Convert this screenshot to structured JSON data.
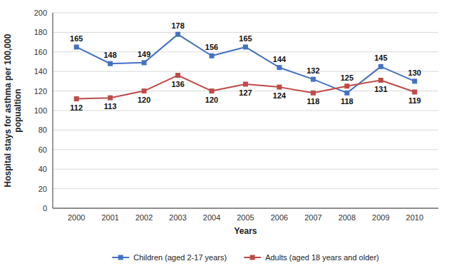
{
  "chart_data": {
    "type": "line",
    "x": [
      2000,
      2001,
      2002,
      2003,
      2004,
      2005,
      2006,
      2007,
      2008,
      2009,
      2010
    ],
    "series": [
      {
        "name": "Children (aged 2-17 years)",
        "color": "#4472C4",
        "marker": "square",
        "values": [
          165,
          148,
          149,
          178,
          156,
          165,
          144,
          132,
          118,
          145,
          130
        ]
      },
      {
        "name": "Adults (aged 18 years and older)",
        "color": "#BE4B48",
        "marker": "square",
        "values": [
          112,
          113,
          120,
          136,
          120,
          127,
          124,
          118,
          125,
          131,
          119
        ]
      }
    ],
    "xlabel": "Years",
    "ylabel": "Hospital stays for asthma per 100,000\n popualtion",
    "xlim": [
      1999.3,
      2010.7
    ],
    "xticks": [
      2000,
      2001,
      2002,
      2003,
      2004,
      2005,
      2006,
      2007,
      2008,
      2009,
      2010
    ],
    "ylim": [
      0,
      200
    ],
    "yticks": [
      0,
      20,
      40,
      60,
      80,
      100,
      120,
      140,
      160,
      180,
      200
    ],
    "grid": true,
    "legend": "bottom",
    "data_labels": true
  }
}
